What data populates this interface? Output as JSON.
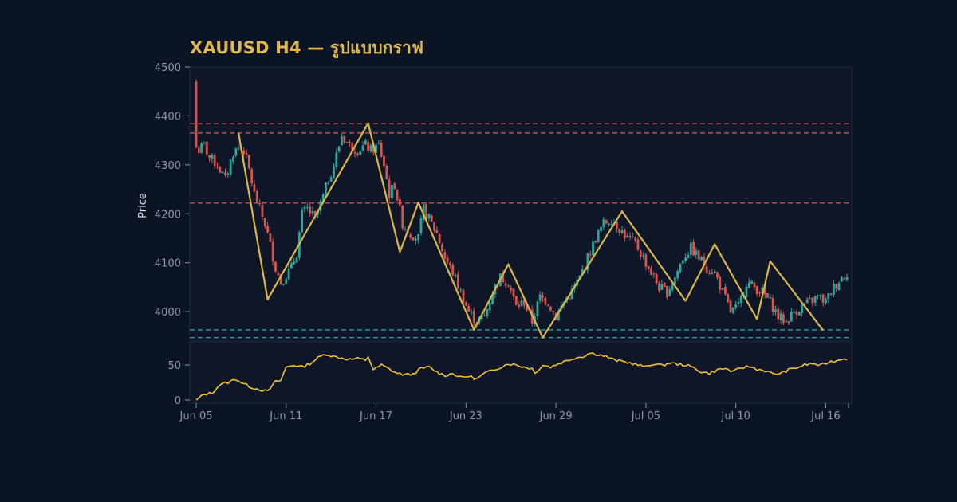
{
  "chart_data": {
    "type": "candlestick",
    "title": "XAUUSD H4 — รูปแบบกราฟ",
    "ylabel": "Price",
    "ylim": [
      3940,
      4500
    ],
    "yticks": [
      4000,
      4100,
      4200,
      4300,
      4400,
      4500
    ],
    "xticks": [
      "Jun 05",
      "Jun 11",
      "Jun 17",
      "Jun 23",
      "Jun 29",
      "Jul 05",
      "Jul 10",
      "Jul 16"
    ],
    "indicator_ylim": [
      0,
      75
    ],
    "indicator_yticks": [
      0,
      50
    ],
    "colors": {
      "up": "#2aa69b",
      "down": "#d9534f",
      "zigzag": "#d9b846",
      "indicator": "#f2c230",
      "resistance": "#d9534f",
      "support": "#2aa69b"
    },
    "price_path": [
      [
        0,
        4470
      ],
      [
        1,
        4330
      ],
      [
        3,
        4340
      ],
      [
        5,
        4315
      ],
      [
        8,
        4300
      ],
      [
        11,
        4270
      ],
      [
        14,
        4325
      ],
      [
        16,
        4335
      ],
      [
        18,
        4330
      ],
      [
        20,
        4290
      ],
      [
        22,
        4240
      ],
      [
        26,
        4180
      ],
      [
        30,
        4090
      ],
      [
        32,
        4060
      ],
      [
        36,
        4090
      ],
      [
        38,
        4120
      ],
      [
        40,
        4200
      ],
      [
        42,
        4210
      ],
      [
        45,
        4190
      ],
      [
        48,
        4235
      ],
      [
        50,
        4270
      ],
      [
        52,
        4300
      ],
      [
        55,
        4360
      ],
      [
        58,
        4340
      ],
      [
        61,
        4330
      ],
      [
        64,
        4340
      ],
      [
        66,
        4330
      ],
      [
        69,
        4340
      ],
      [
        71,
        4300
      ],
      [
        73,
        4240
      ],
      [
        75,
        4260
      ],
      [
        78,
        4180
      ],
      [
        81,
        4160
      ],
      [
        84,
        4150
      ],
      [
        86,
        4210
      ],
      [
        88,
        4190
      ],
      [
        91,
        4160
      ],
      [
        94,
        4110
      ],
      [
        97,
        4080
      ],
      [
        100,
        4040
      ],
      [
        103,
        4000
      ],
      [
        106,
        3980
      ],
      [
        109,
        3990
      ],
      [
        112,
        4040
      ],
      [
        115,
        4070
      ],
      [
        118,
        4060
      ],
      [
        121,
        4010
      ],
      [
        124,
        4020
      ],
      [
        127,
        3980
      ],
      [
        130,
        4030
      ],
      [
        133,
        4020
      ],
      [
        136,
        3990
      ],
      [
        139,
        4020
      ],
      [
        142,
        4040
      ],
      [
        145,
        4070
      ],
      [
        148,
        4110
      ],
      [
        151,
        4150
      ],
      [
        154,
        4180
      ],
      [
        157,
        4190
      ],
      [
        160,
        4170
      ],
      [
        163,
        4150
      ],
      [
        166,
        4140
      ],
      [
        169,
        4110
      ],
      [
        172,
        4080
      ],
      [
        175,
        4050
      ],
      [
        178,
        4040
      ],
      [
        181,
        4070
      ],
      [
        184,
        4110
      ],
      [
        187,
        4130
      ],
      [
        190,
        4110
      ],
      [
        193,
        4090
      ],
      [
        196,
        4080
      ],
      [
        199,
        4040
      ],
      [
        202,
        4000
      ],
      [
        205,
        4010
      ],
      [
        208,
        4060
      ],
      [
        211,
        4050
      ],
      [
        214,
        4040
      ],
      [
        217,
        4020
      ],
      [
        220,
        3990
      ],
      [
        223,
        3980
      ],
      [
        226,
        4000
      ],
      [
        229,
        4010
      ],
      [
        232,
        4020
      ],
      [
        235,
        4030
      ],
      [
        238,
        4020
      ],
      [
        241,
        4050
      ],
      [
        244,
        4070
      ],
      [
        246,
        4080
      ]
    ],
    "zigzag": [
      [
        16,
        4365
      ],
      [
        27,
        4025
      ],
      [
        65,
        4385
      ],
      [
        77,
        4122
      ],
      [
        84,
        4223
      ],
      [
        105,
        3963
      ],
      [
        118,
        4097
      ],
      [
        131,
        3947
      ],
      [
        161,
        4205
      ],
      [
        185,
        4022
      ],
      [
        196,
        4138
      ],
      [
        212,
        3985
      ],
      [
        217,
        4103
      ],
      [
        237,
        3962
      ]
    ],
    "horizontal_lines": [
      {
        "price": 4384,
        "kind": "resistance"
      },
      {
        "price": 4365,
        "kind": "resistance"
      },
      {
        "price": 4222,
        "kind": "resistance"
      },
      {
        "price": 3963,
        "kind": "support"
      },
      {
        "price": 3947,
        "kind": "support"
      }
    ],
    "indicator": [
      [
        0,
        0
      ],
      [
        3,
        8
      ],
      [
        6,
        10
      ],
      [
        9,
        22
      ],
      [
        12,
        25
      ],
      [
        15,
        30
      ],
      [
        18,
        23
      ],
      [
        21,
        18
      ],
      [
        24,
        15
      ],
      [
        27,
        12
      ],
      [
        30,
        26
      ],
      [
        32,
        28
      ],
      [
        34,
        47
      ],
      [
        37,
        50
      ],
      [
        40,
        47
      ],
      [
        43,
        52
      ],
      [
        46,
        60
      ],
      [
        49,
        66
      ],
      [
        52,
        62
      ],
      [
        55,
        60
      ],
      [
        58,
        58
      ],
      [
        61,
        59
      ],
      [
        64,
        57
      ],
      [
        65,
        62
      ],
      [
        67,
        43
      ],
      [
        70,
        50
      ],
      [
        73,
        44
      ],
      [
        76,
        38
      ],
      [
        79,
        36
      ],
      [
        82,
        37
      ],
      [
        85,
        45
      ],
      [
        88,
        47
      ],
      [
        91,
        40
      ],
      [
        94,
        35
      ],
      [
        97,
        38
      ],
      [
        100,
        32
      ],
      [
        103,
        34
      ],
      [
        106,
        30
      ],
      [
        109,
        38
      ],
      [
        112,
        42
      ],
      [
        115,
        47
      ],
      [
        118,
        52
      ],
      [
        121,
        50
      ],
      [
        124,
        47
      ],
      [
        127,
        45
      ],
      [
        128,
        38
      ],
      [
        131,
        50
      ],
      [
        134,
        47
      ],
      [
        137,
        52
      ],
      [
        140,
        56
      ],
      [
        143,
        60
      ],
      [
        146,
        62
      ],
      [
        149,
        67
      ],
      [
        152,
        65
      ],
      [
        155,
        62
      ],
      [
        158,
        57
      ],
      [
        161,
        55
      ],
      [
        164,
        53
      ],
      [
        167,
        50
      ],
      [
        170,
        47
      ],
      [
        173,
        52
      ],
      [
        176,
        49
      ],
      [
        179,
        53
      ],
      [
        182,
        51
      ],
      [
        185,
        50
      ],
      [
        188,
        46
      ],
      [
        191,
        40
      ],
      [
        194,
        38
      ],
      [
        197,
        43
      ],
      [
        200,
        45
      ],
      [
        203,
        40
      ],
      [
        206,
        46
      ],
      [
        209,
        48
      ],
      [
        212,
        44
      ],
      [
        215,
        42
      ],
      [
        218,
        37
      ],
      [
        221,
        38
      ],
      [
        224,
        43
      ],
      [
        227,
        46
      ],
      [
        230,
        50
      ],
      [
        233,
        52
      ],
      [
        236,
        49
      ],
      [
        239,
        54
      ],
      [
        242,
        56
      ],
      [
        245,
        60
      ],
      [
        246,
        58
      ]
    ]
  }
}
